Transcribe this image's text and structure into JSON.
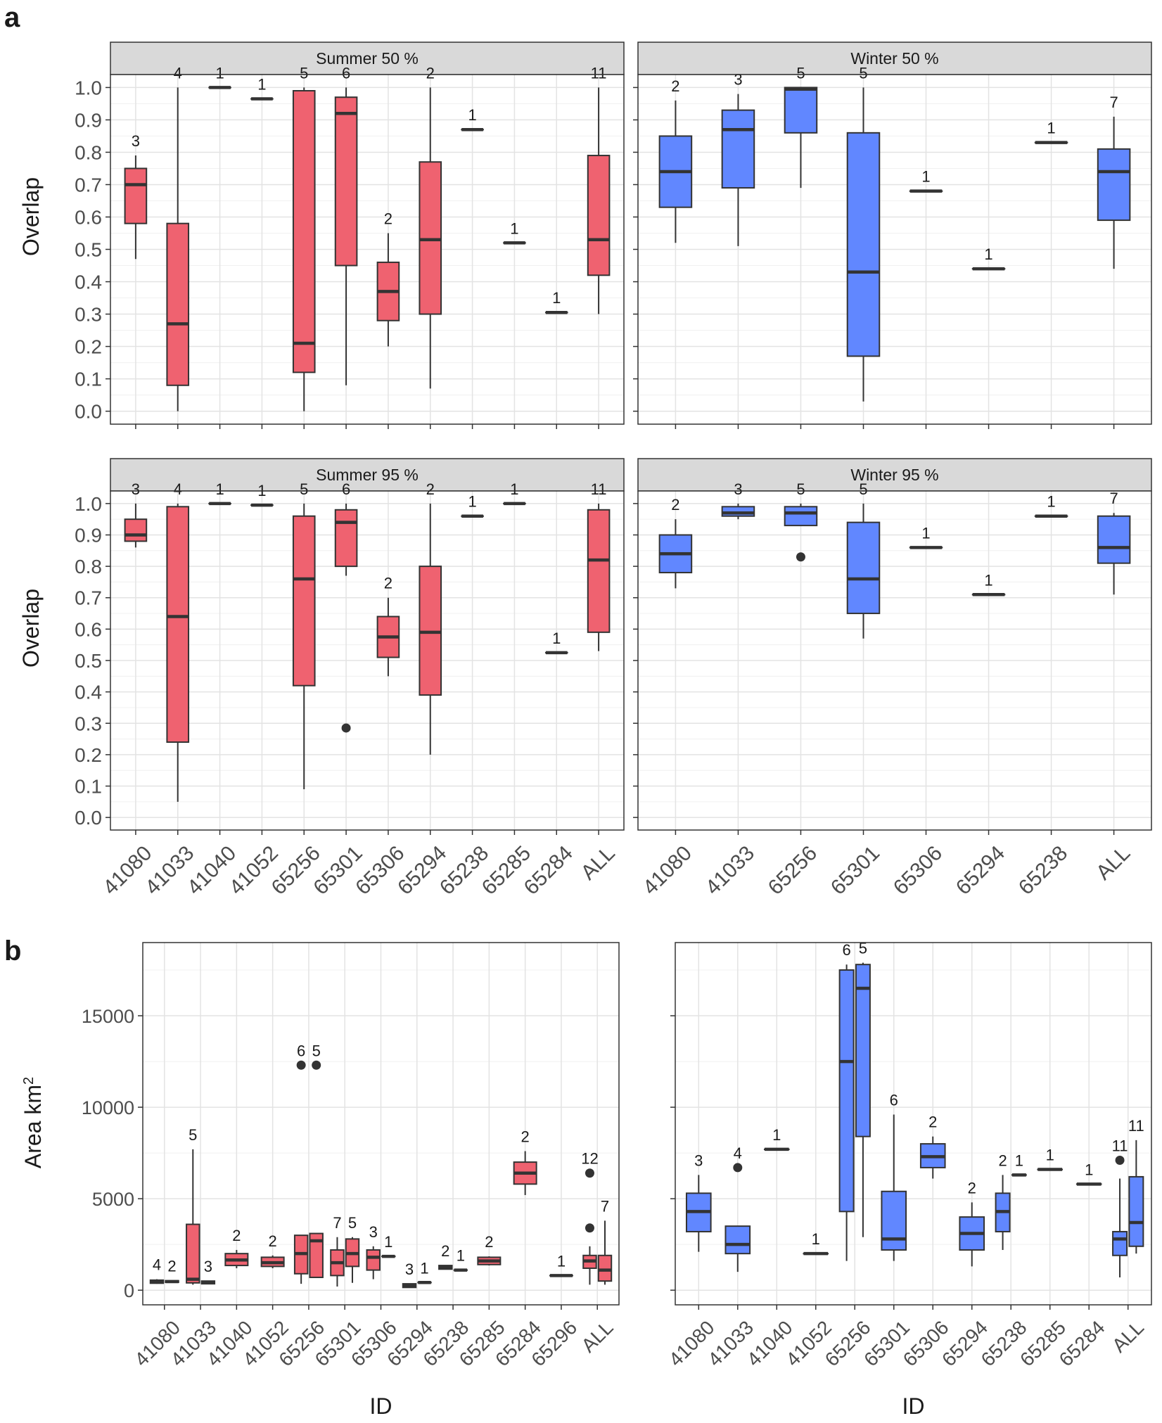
{
  "figure": {
    "panel_a_label": "a",
    "panel_b_label": "b",
    "colors": {
      "summer": "#ef6270",
      "winter": "#6187ff",
      "border": "#333333",
      "strip": "#d9d9d9"
    }
  },
  "chart_data": [
    {
      "type": "box",
      "panel": "a",
      "title": "Summer 50 %",
      "ylabel": "Overlap",
      "ylim": [
        0,
        1.0
      ],
      "yticks": [
        "0.0",
        "0.1",
        "0.2",
        "0.3",
        "0.4",
        "0.5",
        "0.6",
        "0.7",
        "0.8",
        "0.9",
        "1.0"
      ],
      "color": "summer",
      "categories": [
        "41080",
        "41033",
        "41040",
        "41052",
        "65256",
        "65301",
        "65306",
        "65294",
        "65238",
        "65285",
        "65284",
        "ALL"
      ],
      "boxes": [
        {
          "min": 0.47,
          "q1": 0.58,
          "med": 0.7,
          "q3": 0.75,
          "max": 0.79,
          "n": "3"
        },
        {
          "min": 0.0,
          "q1": 0.08,
          "med": 0.27,
          "q3": 0.58,
          "max": 1.0,
          "n": "4"
        },
        {
          "min": 1.0,
          "q1": 1.0,
          "med": 1.0,
          "q3": 1.0,
          "max": 1.0,
          "n": "1"
        },
        {
          "min": 0.965,
          "q1": 0.965,
          "med": 0.965,
          "q3": 0.965,
          "max": 0.965,
          "n": "1"
        },
        {
          "min": 0.0,
          "q1": 0.12,
          "med": 0.21,
          "q3": 0.99,
          "max": 1.0,
          "n": "5"
        },
        {
          "min": 0.08,
          "q1": 0.45,
          "med": 0.92,
          "q3": 0.97,
          "max": 1.0,
          "n": "6"
        },
        {
          "min": 0.2,
          "q1": 0.28,
          "med": 0.37,
          "q3": 0.46,
          "max": 0.55,
          "n": "2"
        },
        {
          "min": 0.07,
          "q1": 0.3,
          "med": 0.53,
          "q3": 0.77,
          "max": 1.0,
          "n": "2"
        },
        {
          "min": 0.87,
          "q1": 0.87,
          "med": 0.87,
          "q3": 0.87,
          "max": 0.87,
          "n": "1"
        },
        {
          "min": 0.52,
          "q1": 0.52,
          "med": 0.52,
          "q3": 0.52,
          "max": 0.52,
          "n": "1"
        },
        {
          "min": 0.305,
          "q1": 0.305,
          "med": 0.305,
          "q3": 0.305,
          "max": 0.305,
          "n": "1"
        },
        {
          "min": 0.3,
          "q1": 0.42,
          "med": 0.53,
          "q3": 0.79,
          "max": 1.0,
          "n": "11"
        }
      ]
    },
    {
      "type": "box",
      "panel": "a",
      "title": "Winter 50 %",
      "ylabel": "",
      "ylim": [
        0,
        1.0
      ],
      "color": "winter",
      "categories": [
        "41080",
        "41033",
        "65256",
        "65301",
        "65306",
        "65294",
        "65238",
        "ALL"
      ],
      "boxes": [
        {
          "min": 0.52,
          "q1": 0.63,
          "med": 0.74,
          "q3": 0.85,
          "max": 0.96,
          "n": "2"
        },
        {
          "min": 0.51,
          "q1": 0.69,
          "med": 0.87,
          "q3": 0.93,
          "max": 0.98,
          "n": "3"
        },
        {
          "min": 0.69,
          "q1": 0.86,
          "med": 0.995,
          "q3": 1.0,
          "max": 1.0,
          "n": "5"
        },
        {
          "min": 0.03,
          "q1": 0.17,
          "med": 0.43,
          "q3": 0.86,
          "max": 1.0,
          "n": "5"
        },
        {
          "min": 0.68,
          "q1": 0.68,
          "med": 0.68,
          "q3": 0.68,
          "max": 0.68,
          "n": "1"
        },
        {
          "min": 0.44,
          "q1": 0.44,
          "med": 0.44,
          "q3": 0.44,
          "max": 0.44,
          "n": "1"
        },
        {
          "min": 0.83,
          "q1": 0.83,
          "med": 0.83,
          "q3": 0.83,
          "max": 0.83,
          "n": "1"
        },
        {
          "min": 0.44,
          "q1": 0.59,
          "med": 0.74,
          "q3": 0.81,
          "max": 0.91,
          "n": "7"
        }
      ]
    },
    {
      "type": "box",
      "panel": "a",
      "title": "Summer 95 %",
      "ylabel": "Overlap",
      "ylim": [
        0,
        1.0
      ],
      "yticks": [
        "0.0",
        "0.1",
        "0.2",
        "0.3",
        "0.4",
        "0.5",
        "0.6",
        "0.7",
        "0.8",
        "0.9",
        "1.0"
      ],
      "color": "summer",
      "categories": [
        "41080",
        "41033",
        "41040",
        "41052",
        "65256",
        "65301",
        "65306",
        "65294",
        "65238",
        "65285",
        "65284",
        "ALL"
      ],
      "xticks": [
        "41080",
        "41033",
        "41040",
        "41052",
        "65256",
        "65301",
        "65306",
        "65294",
        "65238",
        "65285",
        "65284",
        "ALL"
      ],
      "boxes": [
        {
          "min": 0.86,
          "q1": 0.88,
          "med": 0.9,
          "q3": 0.95,
          "max": 1.0,
          "n": "3"
        },
        {
          "min": 0.05,
          "q1": 0.24,
          "med": 0.64,
          "q3": 0.99,
          "max": 1.0,
          "n": "4"
        },
        {
          "min": 1.0,
          "q1": 1.0,
          "med": 1.0,
          "q3": 1.0,
          "max": 1.0,
          "n": "1"
        },
        {
          "min": 0.995,
          "q1": 0.995,
          "med": 0.995,
          "q3": 0.995,
          "max": 0.995,
          "n": "1"
        },
        {
          "min": 0.09,
          "q1": 0.42,
          "med": 0.76,
          "q3": 0.96,
          "max": 1.0,
          "n": "5"
        },
        {
          "min": 0.77,
          "q1": 0.8,
          "med": 0.94,
          "q3": 0.98,
          "max": 1.0,
          "n": "6",
          "outliers": [
            0.285
          ]
        },
        {
          "min": 0.45,
          "q1": 0.51,
          "med": 0.575,
          "q3": 0.64,
          "max": 0.7,
          "n": "2"
        },
        {
          "min": 0.2,
          "q1": 0.39,
          "med": 0.59,
          "q3": 0.8,
          "max": 1.0,
          "n": "2"
        },
        {
          "min": 0.96,
          "q1": 0.96,
          "med": 0.96,
          "q3": 0.96,
          "max": 0.96,
          "n": "1"
        },
        {
          "min": 1.0,
          "q1": 1.0,
          "med": 1.0,
          "q3": 1.0,
          "max": 1.0,
          "n": "1"
        },
        {
          "min": 0.525,
          "q1": 0.525,
          "med": 0.525,
          "q3": 0.525,
          "max": 0.525,
          "n": "1"
        },
        {
          "min": 0.53,
          "q1": 0.59,
          "med": 0.82,
          "q3": 0.98,
          "max": 1.0,
          "n": "11"
        }
      ]
    },
    {
      "type": "box",
      "panel": "a",
      "title": "Winter 95 %",
      "ylabel": "",
      "ylim": [
        0,
        1.0
      ],
      "color": "winter",
      "categories": [
        "41080",
        "41033",
        "65256",
        "65301",
        "65306",
        "65294",
        "65238",
        "ALL"
      ],
      "xticks": [
        "41080",
        "41033",
        "65256",
        "65301",
        "65306",
        "65294",
        "65238",
        "ALL"
      ],
      "boxes": [
        {
          "min": 0.73,
          "q1": 0.78,
          "med": 0.84,
          "q3": 0.9,
          "max": 0.95,
          "n": "2"
        },
        {
          "min": 0.95,
          "q1": 0.96,
          "med": 0.97,
          "q3": 0.99,
          "max": 1.0,
          "n": "3"
        },
        {
          "min": 0.93,
          "q1": 0.93,
          "med": 0.97,
          "q3": 0.99,
          "max": 1.0,
          "n": "5",
          "outliers": [
            0.83
          ]
        },
        {
          "min": 0.57,
          "q1": 0.65,
          "med": 0.76,
          "q3": 0.94,
          "max": 1.0,
          "n": "5"
        },
        {
          "min": 0.86,
          "q1": 0.86,
          "med": 0.86,
          "q3": 0.86,
          "max": 0.86,
          "n": "1"
        },
        {
          "min": 0.71,
          "q1": 0.71,
          "med": 0.71,
          "q3": 0.71,
          "max": 0.71,
          "n": "1"
        },
        {
          "min": 0.96,
          "q1": 0.96,
          "med": 0.96,
          "q3": 0.96,
          "max": 0.96,
          "n": "1"
        },
        {
          "min": 0.71,
          "q1": 0.81,
          "med": 0.86,
          "q3": 0.96,
          "max": 0.97,
          "n": "7"
        }
      ]
    },
    {
      "type": "box",
      "panel": "b",
      "title": "",
      "xlabel": "ID",
      "ylabel": "Area km",
      "ylabel_sup": "2",
      "ylim": [
        -800,
        19000
      ],
      "yticks": [
        "0",
        "5000",
        "10000",
        "15000"
      ],
      "ytick_values": [
        0,
        5000,
        10000,
        15000
      ],
      "color": "summer",
      "categories": [
        "41080",
        "41033",
        "41040",
        "41052",
        "65256",
        "65301",
        "65306",
        "65294",
        "65238",
        "65285",
        "65284",
        "65296",
        "ALL"
      ],
      "xticks": [
        "41080",
        "41033",
        "41040",
        "41052",
        "65256",
        "65301",
        "65306",
        "65294",
        "65238",
        "65285",
        "65284",
        "65296",
        "ALL"
      ],
      "boxes": [
        {
          "cat": 0,
          "off": -0.2,
          "min": 350,
          "q1": 380,
          "med": 450,
          "q3": 550,
          "max": 600,
          "n": "4"
        },
        {
          "cat": 0,
          "off": 0.2,
          "min": 430,
          "q1": 430,
          "med": 470,
          "q3": 520,
          "max": 520,
          "n": "2"
        },
        {
          "cat": 1,
          "off": -0.2,
          "min": 300,
          "q1": 400,
          "med": 600,
          "q3": 3600,
          "max": 7700,
          "n": "5"
        },
        {
          "cat": 1,
          "off": 0.2,
          "min": 350,
          "q1": 350,
          "med": 420,
          "q3": 500,
          "max": 500,
          "n": "3"
        },
        {
          "cat": 2,
          "off": 0,
          "min": 1200,
          "q1": 1350,
          "med": 1650,
          "q3": 2000,
          "max": 2200,
          "n": "2"
        },
        {
          "cat": 3,
          "off": 0,
          "min": 1200,
          "q1": 1300,
          "med": 1500,
          "q3": 1800,
          "max": 1900,
          "n": "2"
        },
        {
          "cat": 4,
          "off": -0.2,
          "min": 350,
          "q1": 900,
          "med": 2000,
          "q3": 3000,
          "max": 3000,
          "n": "6",
          "outliers": [
            12300
          ]
        },
        {
          "cat": 4,
          "off": 0.2,
          "min": 700,
          "q1": 700,
          "med": 2700,
          "q3": 3100,
          "max": 3100,
          "n": "5",
          "outliers": [
            12300
          ]
        },
        {
          "cat": 5,
          "off": -0.2,
          "min": 200,
          "q1": 800,
          "med": 1500,
          "q3": 2200,
          "max": 2900,
          "n": "7"
        },
        {
          "cat": 5,
          "off": 0.2,
          "min": 400,
          "q1": 1300,
          "med": 2000,
          "q3": 2800,
          "max": 2900,
          "n": "5"
        },
        {
          "cat": 6,
          "off": -0.2,
          "min": 600,
          "q1": 1100,
          "med": 1800,
          "q3": 2200,
          "max": 2400,
          "n": "3"
        },
        {
          "cat": 6,
          "off": 0.2,
          "min": 1850,
          "q1": 1850,
          "med": 1850,
          "q3": 1850,
          "max": 1850,
          "n": "1"
        },
        {
          "cat": 7,
          "off": -0.2,
          "min": 150,
          "q1": 150,
          "med": 250,
          "q3": 350,
          "max": 350,
          "n": "3"
        },
        {
          "cat": 7,
          "off": 0.2,
          "min": 420,
          "q1": 420,
          "med": 420,
          "q3": 420,
          "max": 420,
          "n": "1"
        },
        {
          "cat": 8,
          "off": -0.2,
          "min": 1150,
          "q1": 1150,
          "med": 1250,
          "q3": 1350,
          "max": 1350,
          "n": "2"
        },
        {
          "cat": 8,
          "off": 0.2,
          "min": 1100,
          "q1": 1100,
          "med": 1100,
          "q3": 1100,
          "max": 1100,
          "n": "1"
        },
        {
          "cat": 9,
          "off": 0,
          "min": 1350,
          "q1": 1400,
          "med": 1600,
          "q3": 1800,
          "max": 1850,
          "n": "2"
        },
        {
          "cat": 10,
          "off": 0,
          "min": 5200,
          "q1": 5800,
          "med": 6400,
          "q3": 7000,
          "max": 7600,
          "n": "2"
        },
        {
          "cat": 11,
          "off": 0,
          "min": 800,
          "q1": 800,
          "med": 800,
          "q3": 800,
          "max": 800,
          "n": "1"
        },
        {
          "cat": 12,
          "off": -0.2,
          "min": 300,
          "q1": 1200,
          "med": 1600,
          "q3": 1900,
          "max": 2400,
          "n": "12",
          "outliers": [
            6400,
            3400
          ]
        },
        {
          "cat": 12,
          "off": 0.2,
          "min": 300,
          "q1": 500,
          "med": 1100,
          "q3": 1900,
          "max": 3800,
          "n": "7"
        }
      ]
    },
    {
      "type": "box",
      "panel": "b",
      "title": "",
      "xlabel": "ID",
      "ylabel": "",
      "ylim": [
        -800,
        19000
      ],
      "ytick_values": [
        0,
        5000,
        10000,
        15000
      ],
      "color": "winter",
      "categories": [
        "41080",
        "41033",
        "41040",
        "41052",
        "65256",
        "65301",
        "65306",
        "65294",
        "65238",
        "65285",
        "65284",
        "ALL"
      ],
      "xticks": [
        "41080",
        "41033",
        "41040",
        "41052",
        "65256",
        "65301",
        "65306",
        "65294",
        "65238",
        "65285",
        "65284",
        "ALL"
      ],
      "boxes": [
        {
          "cat": 0,
          "off": 0,
          "min": 2100,
          "q1": 3200,
          "med": 4300,
          "q3": 5300,
          "max": 6300,
          "n": "3"
        },
        {
          "cat": 1,
          "off": 0,
          "min": 1000,
          "q1": 2000,
          "med": 2500,
          "q3": 3500,
          "max": 3500,
          "n": "4",
          "outliers": [
            6700
          ]
        },
        {
          "cat": 2,
          "off": 0,
          "min": 7700,
          "q1": 7700,
          "med": 7700,
          "q3": 7700,
          "max": 7700,
          "n": "1"
        },
        {
          "cat": 3,
          "off": 0,
          "min": 2000,
          "q1": 2000,
          "med": 2000,
          "q3": 2000,
          "max": 2000,
          "n": "1"
        },
        {
          "cat": 4,
          "off": -0.2,
          "min": 1600,
          "q1": 4300,
          "med": 12500,
          "q3": 17500,
          "max": 17800,
          "n": "6"
        },
        {
          "cat": 4,
          "off": 0.2,
          "min": 2900,
          "q1": 8400,
          "med": 16500,
          "q3": 17800,
          "max": 17900,
          "n": "5"
        },
        {
          "cat": 5,
          "off": 0,
          "min": 1600,
          "q1": 2200,
          "med": 2800,
          "q3": 5400,
          "max": 9600,
          "n": "6"
        },
        {
          "cat": 6,
          "off": 0,
          "min": 6100,
          "q1": 6700,
          "med": 7300,
          "q3": 8000,
          "max": 8400,
          "n": "2"
        },
        {
          "cat": 7,
          "off": 0,
          "min": 1300,
          "q1": 2200,
          "med": 3100,
          "q3": 4000,
          "max": 4800,
          "n": "2"
        },
        {
          "cat": 8,
          "off": -0.2,
          "min": 2200,
          "q1": 3200,
          "med": 4300,
          "q3": 5300,
          "max": 6300,
          "n": "2"
        },
        {
          "cat": 8,
          "off": 0.2,
          "min": 6300,
          "q1": 6300,
          "med": 6300,
          "q3": 6300,
          "max": 6300,
          "n": "1"
        },
        {
          "cat": 9,
          "off": 0,
          "min": 6600,
          "q1": 6600,
          "med": 6600,
          "q3": 6600,
          "max": 6600,
          "n": "1"
        },
        {
          "cat": 10,
          "off": 0,
          "min": 5800,
          "q1": 5800,
          "med": 5800,
          "q3": 5800,
          "max": 5800,
          "n": "1"
        },
        {
          "cat": 11,
          "off": -0.2,
          "min": 700,
          "q1": 1900,
          "med": 2800,
          "q3": 3200,
          "max": 6100,
          "n": "11",
          "outliers": [
            7100
          ]
        },
        {
          "cat": 11,
          "off": 0.2,
          "min": 2000,
          "q1": 2400,
          "med": 3700,
          "q3": 6200,
          "max": 8200,
          "n": "11"
        }
      ]
    }
  ]
}
